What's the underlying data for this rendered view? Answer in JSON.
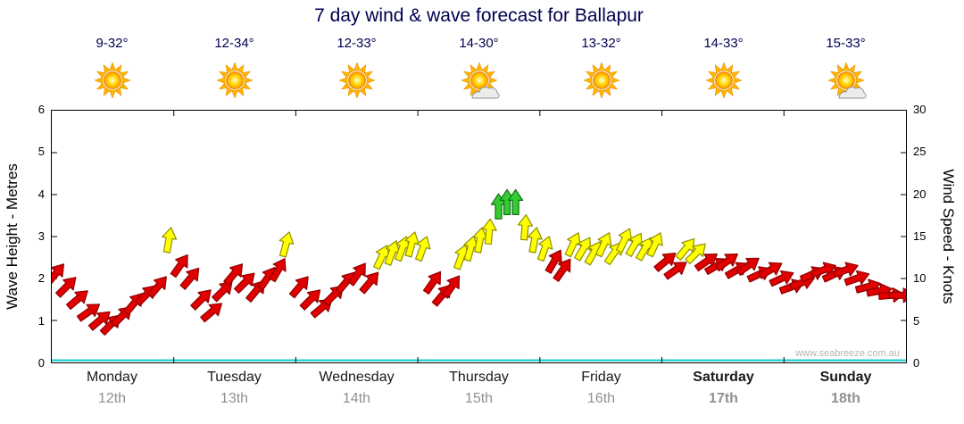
{
  "title": "7 day wind & wave forecast for Ballapur",
  "watermark": "www.seabreeze.com.au",
  "chart_data": {
    "type": "wind-forecast-arrows",
    "title": "7 day wind & wave forecast for Ballapur",
    "left_axis": {
      "label": "Wave Height - Metres",
      "min": 0,
      "max": 6,
      "ticks": [
        0,
        1,
        2,
        3,
        4,
        5,
        6
      ]
    },
    "right_axis": {
      "label": "Wind Speed - Knots",
      "min": 0,
      "max": 30,
      "ticks": [
        0,
        5,
        10,
        15,
        20,
        25,
        30
      ]
    },
    "days": [
      {
        "name": "Monday",
        "date": "12th",
        "temp": "9-32°",
        "icon": "sun",
        "bold": false
      },
      {
        "name": "Tuesday",
        "date": "13th",
        "temp": "12-34°",
        "icon": "sun",
        "bold": false
      },
      {
        "name": "Wednesday",
        "date": "14th",
        "temp": "12-33°",
        "icon": "sun",
        "bold": false
      },
      {
        "name": "Thursday",
        "date": "15th",
        "temp": "14-30°",
        "icon": "sun-cloud",
        "bold": false
      },
      {
        "name": "Friday",
        "date": "16th",
        "temp": "13-32°",
        "icon": "sun",
        "bold": false
      },
      {
        "name": "Saturday",
        "date": "17th",
        "temp": "14-33°",
        "icon": "sun",
        "bold": true
      },
      {
        "name": "Sunday",
        "date": "18th",
        "temp": "15-33°",
        "icon": "sun-cloud",
        "bold": true
      }
    ],
    "colors": {
      "red": "#e00000",
      "red_stroke": "#8f0000",
      "yellow": "#ffff00",
      "yellow_stroke": "#8f8f00",
      "green": "#33cc33",
      "green_stroke": "#0f700f",
      "wave_line": "#00cccc"
    },
    "thresholds": {
      "yellow_min_knots": 12.5,
      "green_min_knots": 17.5
    },
    "wave_line": {
      "flat_value_m": 0.05
    },
    "points": [
      {
        "t": 0.004,
        "knots": 10.5,
        "dir": 40
      },
      {
        "t": 0.017,
        "knots": 9.0,
        "dir": 45
      },
      {
        "t": 0.03,
        "knots": 7.5,
        "dir": 50
      },
      {
        "t": 0.043,
        "knots": 6.0,
        "dir": 55
      },
      {
        "t": 0.056,
        "knots": 5.0,
        "dir": 50
      },
      {
        "t": 0.069,
        "knots": 4.5,
        "dir": 45
      },
      {
        "t": 0.082,
        "knots": 5.5,
        "dir": 45
      },
      {
        "t": 0.096,
        "knots": 7.0,
        "dir": 40
      },
      {
        "t": 0.11,
        "knots": 8.0,
        "dir": 45
      },
      {
        "t": 0.124,
        "knots": 9.0,
        "dir": 40
      },
      {
        "t": 0.137,
        "knots": 14.5,
        "dir": 10
      },
      {
        "t": 0.15,
        "knots": 11.5,
        "dir": 35
      },
      {
        "t": 0.162,
        "knots": 10.0,
        "dir": 40
      },
      {
        "t": 0.175,
        "knots": 7.5,
        "dir": 45
      },
      {
        "t": 0.187,
        "knots": 6.0,
        "dir": 50
      },
      {
        "t": 0.2,
        "knots": 8.5,
        "dir": 45
      },
      {
        "t": 0.213,
        "knots": 10.5,
        "dir": 40
      },
      {
        "t": 0.226,
        "knots": 9.5,
        "dir": 45
      },
      {
        "t": 0.239,
        "knots": 8.5,
        "dir": 40
      },
      {
        "t": 0.252,
        "knots": 10.0,
        "dir": 35
      },
      {
        "t": 0.265,
        "knots": 11.0,
        "dir": 30
      },
      {
        "t": 0.274,
        "knots": 14.0,
        "dir": 15
      },
      {
        "t": 0.29,
        "knots": 9.0,
        "dir": 40
      },
      {
        "t": 0.303,
        "knots": 7.5,
        "dir": 45
      },
      {
        "t": 0.316,
        "knots": 6.5,
        "dir": 50
      },
      {
        "t": 0.33,
        "knots": 8.0,
        "dir": 45
      },
      {
        "t": 0.344,
        "knots": 9.5,
        "dir": 40
      },
      {
        "t": 0.358,
        "knots": 10.5,
        "dir": 35
      },
      {
        "t": 0.372,
        "knots": 9.5,
        "dir": 40
      },
      {
        "t": 0.386,
        "knots": 12.5,
        "dir": 25
      },
      {
        "t": 0.398,
        "knots": 13.0,
        "dir": 20
      },
      {
        "t": 0.41,
        "knots": 13.5,
        "dir": 20
      },
      {
        "t": 0.421,
        "knots": 14.0,
        "dir": 15
      },
      {
        "t": 0.434,
        "knots": 13.5,
        "dir": 20
      },
      {
        "t": 0.446,
        "knots": 9.5,
        "dir": 35
      },
      {
        "t": 0.457,
        "knots": 8.0,
        "dir": 40
      },
      {
        "t": 0.468,
        "knots": 9.0,
        "dir": 35
      },
      {
        "t": 0.479,
        "knots": 12.5,
        "dir": 20
      },
      {
        "t": 0.49,
        "knots": 13.5,
        "dir": 15
      },
      {
        "t": 0.501,
        "knots": 14.5,
        "dir": 10
      },
      {
        "t": 0.512,
        "knots": 15.5,
        "dir": 5
      },
      {
        "t": 0.523,
        "knots": 18.5,
        "dir": 0
      },
      {
        "t": 0.533,
        "knots": 19.0,
        "dir": 0
      },
      {
        "t": 0.543,
        "knots": 19.0,
        "dir": 0
      },
      {
        "t": 0.554,
        "knots": 16.0,
        "dir": 5
      },
      {
        "t": 0.565,
        "knots": 14.5,
        "dir": 10
      },
      {
        "t": 0.577,
        "knots": 13.5,
        "dir": 20
      },
      {
        "t": 0.588,
        "knots": 12.0,
        "dir": 30
      },
      {
        "t": 0.598,
        "knots": 11.0,
        "dir": 35
      },
      {
        "t": 0.61,
        "knots": 14.0,
        "dir": 25
      },
      {
        "t": 0.622,
        "knots": 13.5,
        "dir": 30
      },
      {
        "t": 0.634,
        "knots": 13.0,
        "dir": 30
      },
      {
        "t": 0.646,
        "knots": 14.0,
        "dir": 25
      },
      {
        "t": 0.658,
        "knots": 13.0,
        "dir": 35
      },
      {
        "t": 0.67,
        "knots": 14.5,
        "dir": 25
      },
      {
        "t": 0.682,
        "knots": 14.0,
        "dir": 30
      },
      {
        "t": 0.694,
        "knots": 13.5,
        "dir": 30
      },
      {
        "t": 0.706,
        "knots": 14.0,
        "dir": 25
      },
      {
        "t": 0.718,
        "knots": 12.0,
        "dir": 50
      },
      {
        "t": 0.73,
        "knots": 11.0,
        "dir": 55
      },
      {
        "t": 0.742,
        "knots": 13.5,
        "dir": 40
      },
      {
        "t": 0.754,
        "knots": 13.0,
        "dir": 45
      },
      {
        "t": 0.766,
        "knots": 12.0,
        "dir": 55
      },
      {
        "t": 0.778,
        "knots": 11.5,
        "dir": 60
      },
      {
        "t": 0.79,
        "knots": 12.0,
        "dir": 55
      },
      {
        "t": 0.802,
        "knots": 11.0,
        "dir": 60
      },
      {
        "t": 0.815,
        "knots": 11.5,
        "dir": 55
      },
      {
        "t": 0.828,
        "knots": 10.5,
        "dir": 65
      },
      {
        "t": 0.841,
        "knots": 11.0,
        "dir": 60
      },
      {
        "t": 0.854,
        "knots": 10.0,
        "dir": 65
      },
      {
        "t": 0.866,
        "knots": 9.0,
        "dir": 70
      },
      {
        "t": 0.878,
        "knots": 9.5,
        "dir": 70
      },
      {
        "t": 0.89,
        "knots": 10.5,
        "dir": 65
      },
      {
        "t": 0.903,
        "knots": 11.0,
        "dir": 70
      },
      {
        "t": 0.916,
        "knots": 10.5,
        "dir": 65
      },
      {
        "t": 0.929,
        "knots": 11.0,
        "dir": 70
      },
      {
        "t": 0.942,
        "knots": 10.0,
        "dir": 70
      },
      {
        "t": 0.955,
        "knots": 9.0,
        "dir": 75
      },
      {
        "t": 0.968,
        "knots": 8.5,
        "dir": 80
      },
      {
        "t": 0.982,
        "knots": 8.0,
        "dir": 85
      },
      {
        "t": 0.994,
        "knots": 8.0,
        "dir": 90
      }
    ]
  }
}
